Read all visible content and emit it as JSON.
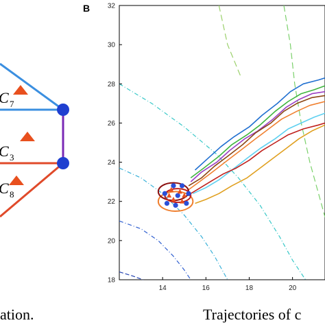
{
  "panel_label": "B",
  "captions": {
    "left": "ation.",
    "right": "Trajectories of c"
  },
  "left_diagram": {
    "labels": [
      {
        "letter": "C",
        "sub": "7"
      },
      {
        "letter": "C",
        "sub": "3"
      },
      {
        "letter": "C",
        "sub": "8"
      }
    ],
    "colors": {
      "top": "#3b8fe0",
      "middle": "#e04a2a",
      "vertical": "#7a2ab5",
      "node": "#1f3fd0",
      "marker": "#e8501e"
    }
  },
  "chart_data": {
    "type": "line",
    "title": "",
    "xlabel": "",
    "ylabel": "",
    "xlim": [
      12.0,
      21.5
    ],
    "ylim": [
      18,
      32
    ],
    "xticks": [
      14,
      16,
      18,
      20
    ],
    "yticks": [
      18,
      20,
      22,
      24,
      26,
      28,
      30,
      32
    ],
    "grid": false,
    "series": [
      {
        "color": "#1f6fd0",
        "points": [
          [
            15.5,
            23.6
          ],
          [
            16.0,
            24.1
          ],
          [
            16.7,
            24.8
          ],
          [
            17.3,
            25.3
          ],
          [
            18.0,
            25.8
          ],
          [
            18.6,
            26.4
          ],
          [
            19.3,
            27.0
          ],
          [
            19.9,
            27.6
          ],
          [
            20.5,
            28.0
          ],
          [
            21.2,
            28.2
          ],
          [
            21.5,
            28.3
          ]
        ]
      },
      {
        "color": "#3fb53f",
        "points": [
          [
            15.3,
            23.2
          ],
          [
            15.9,
            23.7
          ],
          [
            16.6,
            24.3
          ],
          [
            17.2,
            24.9
          ],
          [
            17.9,
            25.4
          ],
          [
            18.5,
            25.9
          ],
          [
            19.2,
            26.6
          ],
          [
            19.8,
            27.1
          ],
          [
            20.4,
            27.5
          ],
          [
            21.0,
            27.7
          ],
          [
            21.5,
            27.9
          ]
        ]
      },
      {
        "color": "#9a3fc2",
        "points": [
          [
            15.3,
            23.0
          ],
          [
            15.8,
            23.5
          ],
          [
            16.5,
            24.0
          ],
          [
            17.1,
            24.6
          ],
          [
            17.8,
            25.2
          ],
          [
            18.4,
            25.6
          ],
          [
            19.1,
            26.2
          ],
          [
            19.7,
            26.8
          ],
          [
            20.3,
            27.2
          ],
          [
            20.9,
            27.5
          ],
          [
            21.5,
            27.6
          ]
        ]
      },
      {
        "color": "#8b4513",
        "points": [
          [
            15.2,
            22.8
          ],
          [
            15.8,
            23.2
          ],
          [
            16.4,
            23.8
          ],
          [
            17.0,
            24.3
          ],
          [
            17.7,
            24.9
          ],
          [
            18.3,
            25.5
          ],
          [
            19.0,
            26.0
          ],
          [
            19.6,
            26.6
          ],
          [
            20.2,
            27.0
          ],
          [
            20.9,
            27.3
          ],
          [
            21.5,
            27.4
          ]
        ]
      },
      {
        "color": "#f08030",
        "points": [
          [
            15.2,
            22.6
          ],
          [
            15.7,
            23.0
          ],
          [
            16.3,
            23.5
          ],
          [
            17.0,
            24.1
          ],
          [
            17.6,
            24.6
          ],
          [
            18.3,
            25.2
          ],
          [
            18.9,
            25.7
          ],
          [
            19.5,
            26.2
          ],
          [
            20.2,
            26.6
          ],
          [
            20.8,
            26.9
          ],
          [
            21.5,
            27.1
          ]
        ]
      },
      {
        "color": "#5fd0f0",
        "points": [
          [
            15.4,
            22.4
          ],
          [
            16.0,
            22.7
          ],
          [
            16.6,
            23.1
          ],
          [
            17.2,
            23.6
          ],
          [
            17.9,
            24.2
          ],
          [
            18.5,
            24.7
          ],
          [
            19.2,
            25.2
          ],
          [
            19.8,
            25.7
          ],
          [
            20.4,
            26.0
          ],
          [
            21.0,
            26.3
          ],
          [
            21.5,
            26.5
          ]
        ]
      },
      {
        "color": "#c0201c",
        "points": [
          [
            15.0,
            22.2
          ],
          [
            15.6,
            22.6
          ],
          [
            16.2,
            23.0
          ],
          [
            16.8,
            23.4
          ],
          [
            17.4,
            23.7
          ],
          [
            18.0,
            24.1
          ],
          [
            18.6,
            24.6
          ],
          [
            19.2,
            25.0
          ],
          [
            19.8,
            25.4
          ],
          [
            20.5,
            25.7
          ],
          [
            21.2,
            25.9
          ],
          [
            21.5,
            26.0
          ]
        ]
      },
      {
        "color": "#e0a020",
        "points": [
          [
            15.5,
            21.9
          ],
          [
            16.0,
            22.1
          ],
          [
            16.6,
            22.4
          ],
          [
            17.2,
            22.8
          ],
          [
            17.9,
            23.2
          ],
          [
            18.5,
            23.7
          ],
          [
            19.1,
            24.2
          ],
          [
            19.7,
            24.7
          ],
          [
            20.3,
            25.2
          ],
          [
            20.9,
            25.6
          ],
          [
            21.5,
            25.9
          ]
        ]
      }
    ],
    "start_ellipses": [
      {
        "color": "#f08030",
        "cx": 14.6,
        "cy": 22.0,
        "rx": 0.8,
        "ry": 0.5
      },
      {
        "color": "#8b1010",
        "cx": 14.5,
        "cy": 22.5,
        "rx": 0.7,
        "ry": 0.45
      },
      {
        "color": "#c0201c",
        "cx": 14.7,
        "cy": 22.3,
        "rx": 0.6,
        "ry": 0.35
      }
    ],
    "start_nodes": [
      [
        14.1,
        22.4
      ],
      [
        14.5,
        22.8
      ],
      [
        14.9,
        22.8
      ],
      [
        15.2,
        22.4
      ],
      [
        15.1,
        21.9
      ],
      [
        14.6,
        21.8
      ],
      [
        14.2,
        21.9
      ],
      [
        14.7,
        22.3
      ]
    ],
    "start_markers": [
      [
        14.4,
        22.6
      ],
      [
        14.8,
        22.5
      ],
      [
        14.5,
        22.1
      ],
      [
        14.9,
        22.0
      ],
      [
        14.3,
        22.3
      ],
      [
        15.0,
        22.3
      ]
    ],
    "contours": [
      {
        "color": "#37c8c8",
        "dash": "6 3 1 3",
        "points": [
          [
            12.0,
            28.0
          ],
          [
            13.5,
            27.0
          ],
          [
            15.0,
            25.8
          ],
          [
            16.5,
            24.4
          ],
          [
            17.5,
            23.2
          ],
          [
            18.5,
            21.8
          ],
          [
            19.4,
            20.2
          ],
          [
            20.0,
            19.0
          ],
          [
            20.6,
            18.0
          ]
        ]
      },
      {
        "color": "#37b0d8",
        "dash": "6 3 1 3",
        "points": [
          [
            12.0,
            23.7
          ],
          [
            13.0,
            23.2
          ],
          [
            14.0,
            22.4
          ],
          [
            15.0,
            21.3
          ],
          [
            15.8,
            20.2
          ],
          [
            16.4,
            19.2
          ],
          [
            17.0,
            18.0
          ]
        ]
      },
      {
        "color": "#3060d0",
        "dash": "6 3 1 3",
        "points": [
          [
            12.0,
            21.0
          ],
          [
            13.0,
            20.6
          ],
          [
            13.8,
            20.0
          ],
          [
            14.5,
            19.2
          ],
          [
            15.0,
            18.5
          ],
          [
            15.3,
            18.0
          ]
        ]
      },
      {
        "color": "#2040b0",
        "dash": "6 3",
        "points": [
          [
            12.0,
            18.4
          ],
          [
            12.6,
            18.2
          ],
          [
            13.1,
            18.0
          ]
        ]
      },
      {
        "color": "#7ad06a",
        "dash": "9 5",
        "points": [
          [
            19.6,
            32.0
          ],
          [
            19.9,
            30.0
          ],
          [
            20.1,
            28.0
          ],
          [
            20.4,
            26.0
          ],
          [
            20.8,
            24.0
          ],
          [
            21.3,
            22.0
          ],
          [
            21.5,
            21.2
          ]
        ]
      },
      {
        "color": "#9ad06a",
        "dash": "9 5",
        "points": [
          [
            16.6,
            32.0
          ],
          [
            17.0,
            30.0
          ],
          [
            17.6,
            28.4
          ]
        ]
      }
    ]
  }
}
